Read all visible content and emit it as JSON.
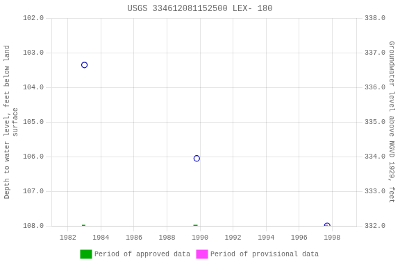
{
  "chart_data": {
    "type": "scatter",
    "title": "USGS 334612081152500 LEX- 180",
    "ylabel": "Depth to water level, feet below land\nsurface",
    "y2label": "Groundwater level above NGVD 1929, feet",
    "xlim": [
      1981.0,
      1999.5
    ],
    "xticks": [
      1982,
      1984,
      1986,
      1988,
      1990,
      1992,
      1994,
      1996,
      1998
    ],
    "ylim": [
      108.0,
      102.0
    ],
    "yticks": [
      {
        "value": 102.0,
        "label": "102.0"
      },
      {
        "value": 103.0,
        "label": "103.0"
      },
      {
        "value": 104.0,
        "label": "104.0"
      },
      {
        "value": 105.0,
        "label": "105.0"
      },
      {
        "value": 106.0,
        "label": "106.0"
      },
      {
        "value": 107.0,
        "label": "107.0"
      },
      {
        "value": 108.0,
        "label": "108.0"
      }
    ],
    "y2lim": [
      332.0,
      338.0
    ],
    "y2ticks": [
      {
        "value": 338.0,
        "label": "338.0"
      },
      {
        "value": 337.0,
        "label": "337.0"
      },
      {
        "value": 336.0,
        "label": "336.0"
      },
      {
        "value": 335.0,
        "label": "335.0"
      },
      {
        "value": 334.0,
        "label": "334.0"
      },
      {
        "value": 333.0,
        "label": "333.0"
      },
      {
        "value": 332.0,
        "label": "332.0"
      }
    ],
    "grid": true,
    "legend": "bottom",
    "series": [
      {
        "type": "scatter",
        "marker": "open_circle",
        "color": "#0000bb",
        "x": [
          1983.0,
          1989.8,
          1997.7
        ],
        "values": [
          103.35,
          106.05,
          108.0
        ]
      },
      {
        "name": "Period of approved data",
        "type": "line",
        "color": "#00aa00",
        "segments": [
          {
            "x": [
              1982.85,
              1983.05
            ],
            "values": [
              108.0,
              108.0
            ]
          },
          {
            "x": [
              1989.6,
              1989.85
            ],
            "values": [
              108.0,
              108.0
            ]
          }
        ]
      },
      {
        "name": "Period of provisional data",
        "type": "line",
        "color": "#ff44ff",
        "segments": [
          {
            "x": [
              1997.55,
              1997.75
            ],
            "values": [
              108.0,
              108.0
            ]
          }
        ]
      }
    ]
  }
}
